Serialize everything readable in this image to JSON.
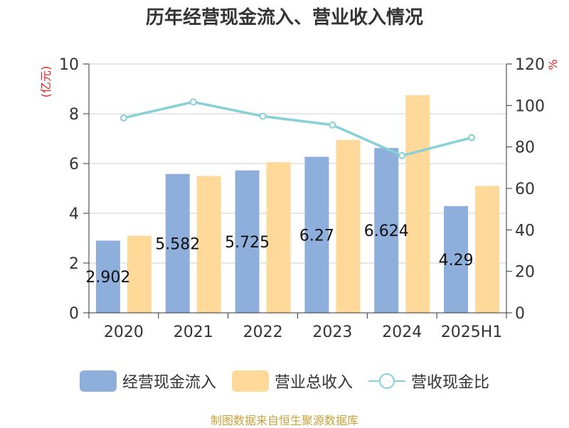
{
  "title": "历年经营现金流入、营业收入情况",
  "source_note": "制图数据来自恒生聚源数据库",
  "chart_data": {
    "type": "bar",
    "categories": [
      "2020",
      "2021",
      "2022",
      "2023",
      "2024",
      "2025H1"
    ],
    "series": [
      {
        "name": "经营现金流入",
        "type": "bar",
        "axis": "left",
        "color": "#8eafdc",
        "values": [
          2.902,
          5.582,
          5.725,
          6.27,
          6.624,
          4.29
        ],
        "labels": [
          "2.902",
          "5.582",
          "5.725",
          "6.27",
          "6.624",
          "4.29"
        ]
      },
      {
        "name": "营业总收入",
        "type": "bar",
        "axis": "left",
        "color": "#ffd99a",
        "values": [
          3.1,
          5.5,
          6.05,
          6.95,
          8.75,
          5.1
        ]
      },
      {
        "name": "营收现金比",
        "type": "line",
        "axis": "right",
        "color": "#86d0d6",
        "values": [
          94.0,
          101.7,
          94.8,
          90.6,
          75.8,
          84.5
        ]
      }
    ],
    "y_left": {
      "unit_label": "(亿元)",
      "ylim": [
        0,
        10
      ],
      "ticks": [
        0,
        2,
        4,
        6,
        8,
        10
      ]
    },
    "y_right": {
      "unit_label": "%",
      "ylim": [
        0,
        120
      ],
      "ticks": [
        0,
        20,
        40,
        60,
        80,
        100,
        120
      ]
    },
    "grid": true,
    "legend_position": "bottom"
  }
}
